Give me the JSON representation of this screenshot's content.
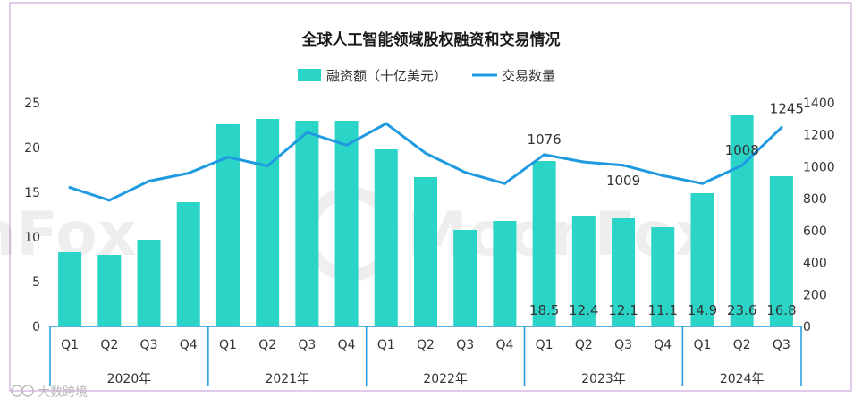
{
  "chart_data": {
    "type": "bar+line",
    "title": "全球人工智能领域股权融资和交易情况",
    "legend": [
      {
        "name": "融资额（十亿美元）",
        "kind": "bar",
        "color": "#2ad4c6"
      },
      {
        "name": "交易数量",
        "kind": "line",
        "color": "#1f9ae0"
      }
    ],
    "categories": [
      "Q1",
      "Q2",
      "Q3",
      "Q4",
      "Q1",
      "Q2",
      "Q3",
      "Q4",
      "Q1",
      "Q2",
      "Q3",
      "Q4",
      "Q1",
      "Q2",
      "Q3",
      "Q4",
      "Q1",
      "Q2",
      "Q3"
    ],
    "groups": [
      {
        "label": "2020年",
        "count": 4
      },
      {
        "label": "2021年",
        "count": 4
      },
      {
        "label": "2022年",
        "count": 4
      },
      {
        "label": "2023年",
        "count": 4
      },
      {
        "label": "2024年",
        "count": 3
      }
    ],
    "series": [
      {
        "name": "融资额（十亿美元）",
        "axis": "left",
        "values": [
          8.3,
          8.0,
          9.7,
          13.9,
          22.6,
          23.2,
          23.0,
          23.0,
          19.8,
          16.7,
          10.8,
          11.8,
          18.5,
          12.4,
          12.1,
          11.1,
          14.9,
          23.6,
          16.8
        ]
      },
      {
        "name": "交易数量",
        "axis": "right",
        "values": [
          870,
          790,
          910,
          960,
          1060,
          1005,
          1215,
          1135,
          1270,
          1085,
          965,
          895,
          1076,
          1030,
          1009,
          945,
          895,
          1008,
          1245
        ]
      }
    ],
    "bar_value_labels": [
      {
        "index": 12,
        "text": "18.5"
      },
      {
        "index": 13,
        "text": "12.4"
      },
      {
        "index": 14,
        "text": "12.1"
      },
      {
        "index": 15,
        "text": "11.1"
      },
      {
        "index": 16,
        "text": "14.9"
      },
      {
        "index": 17,
        "text": "23.6"
      },
      {
        "index": 18,
        "text": "16.8"
      }
    ],
    "line_value_labels": [
      {
        "index": 12,
        "text": "1076"
      },
      {
        "index": 14,
        "text": "1009"
      },
      {
        "index": 17,
        "text": "1008"
      },
      {
        "index": 18,
        "text": "1245"
      }
    ],
    "y_left": {
      "min": 0,
      "max": 25,
      "ticks": [
        "0",
        "5",
        "10",
        "15",
        "20",
        "25"
      ]
    },
    "y_right": {
      "min": 0,
      "max": 1400,
      "ticks": [
        "0",
        "200",
        "400",
        "600",
        "800",
        "1000",
        "1200",
        "1400"
      ]
    },
    "watermark": "MoonFox",
    "source_logo": "大数跨境"
  }
}
